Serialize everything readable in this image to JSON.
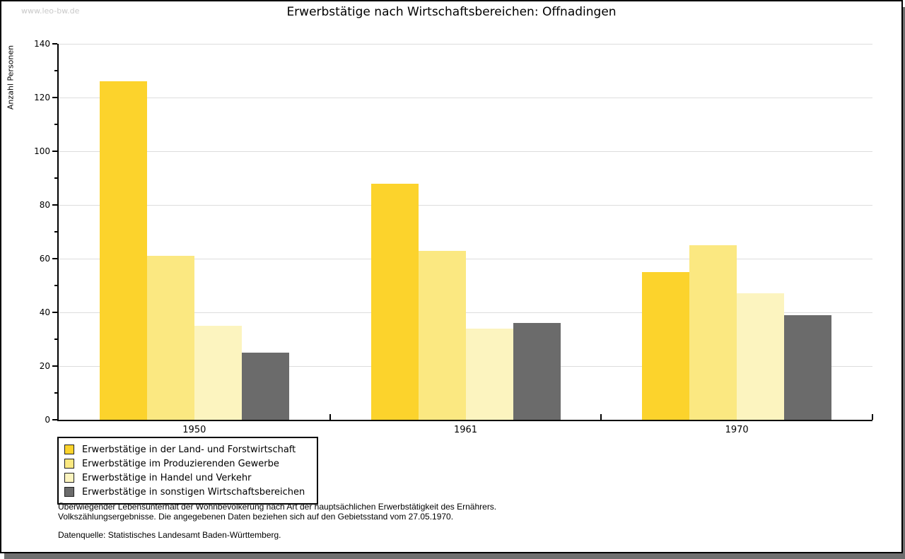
{
  "watermark": "www.leo-bw.de",
  "title": "Erwerbstätige nach Wirtschaftsbereichen: Offnadingen",
  "chart_data": {
    "type": "bar",
    "title": "Erwerbstätige nach Wirtschaftsbereichen: Offnadingen",
    "xlabel": "",
    "ylabel": "Anzahl Personen",
    "ylim": [
      0,
      140
    ],
    "ytick_step": 20,
    "ytick_minor_step": 10,
    "grid": true,
    "gridline_color": "#DDDDDD",
    "legend_position": "bottom-left",
    "categories": [
      "1950",
      "1961",
      "1970"
    ],
    "series": [
      {
        "name": "Erwerbstätige in der Land- und Forstwirtschaft",
        "color": "#FCD32C",
        "values": [
          126,
          88,
          55
        ]
      },
      {
        "name": "Erwerbstätige im Produzierenden Gewerbe",
        "color": "#FBE881",
        "values": [
          61,
          63,
          65
        ]
      },
      {
        "name": "Erwerbstätige in Handel und Verkehr",
        "color": "#FCF4BF",
        "values": [
          35,
          34,
          47
        ]
      },
      {
        "name": "Erwerbstätige in sonstigen Wirtschaftsbereichen",
        "color": "#6B6B6B",
        "values": [
          25,
          36,
          39
        ]
      }
    ]
  },
  "footnotes": {
    "line1": "Überwiegender Lebensunterhalt der Wohnbevölkerung nach Art der hauptsächlichen Erwerbstätigkeit des Ernährers.",
    "line2": "Volkszählungsergebnisse. Die angegebenen Daten beziehen sich auf den Gebietsstand vom 27.05.1970.",
    "datasource": "Datenquelle: Statistisches Landesamt Baden-Württemberg."
  }
}
